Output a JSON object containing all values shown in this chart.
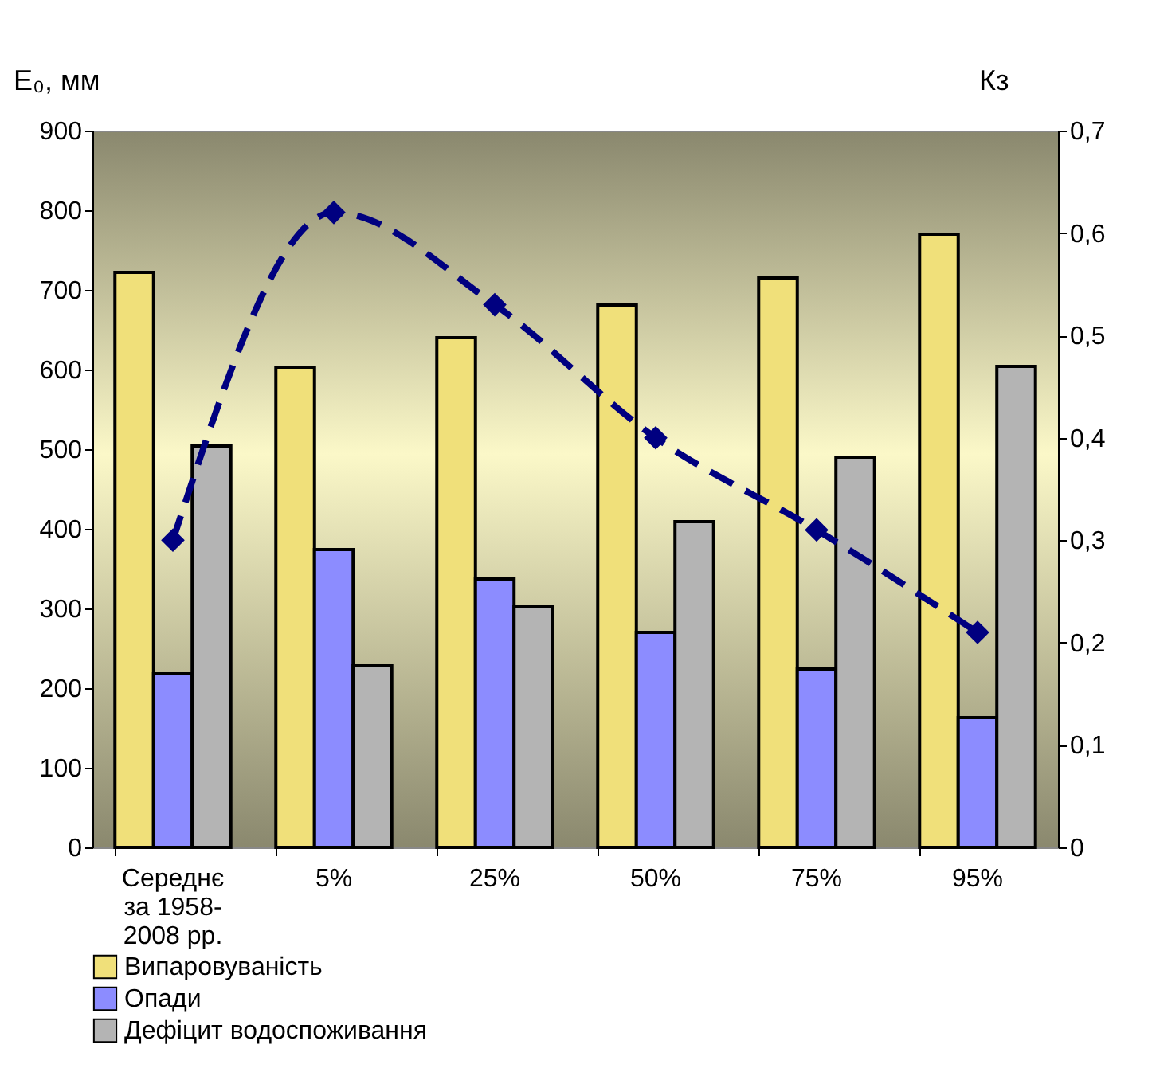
{
  "chart_data": {
    "type": "bar",
    "categories": [
      "Середнє за 1958-2008 рр.",
      "5%",
      "25%",
      "50%",
      "75%",
      "95%"
    ],
    "ylabel": "E₀, мм",
    "y2label": "Кз",
    "ylim": [
      0,
      900
    ],
    "yticks": [
      0,
      100,
      200,
      300,
      400,
      500,
      600,
      700,
      800,
      900
    ],
    "y2lim": [
      0,
      0.7
    ],
    "y2ticks": [
      {
        "value": 0,
        "label": "0"
      },
      {
        "value": 0.1,
        "label": "0,1"
      },
      {
        "value": 0.2,
        "label": "0,2"
      },
      {
        "value": 0.3,
        "label": "0,3"
      },
      {
        "value": 0.4,
        "label": "0,4"
      },
      {
        "value": 0.5,
        "label": "0,5"
      },
      {
        "value": 0.6,
        "label": "0,6"
      },
      {
        "value": 0.7,
        "label": "0,7"
      }
    ],
    "legend": "bottom",
    "series": [
      {
        "name": "Випаровуваність",
        "color": "#f0e07a",
        "values": [
          722,
          603,
          640,
          681,
          715,
          770
        ]
      },
      {
        "name": "Опади",
        "color": "#8c8cff",
        "values": [
          218,
          374,
          337,
          270,
          224,
          163
        ]
      },
      {
        "name": "Дефіцит водоспоживання",
        "color": "#b4b4b4",
        "values": [
          504,
          228,
          302,
          409,
          490,
          604
        ]
      },
      {
        "type": "line",
        "axis": "y2",
        "color": "#000080",
        "marker": "diamond",
        "line_style": "dashed",
        "values": [
          0.3,
          0.62,
          0.53,
          0.4,
          0.31,
          0.21
        ]
      }
    ]
  }
}
